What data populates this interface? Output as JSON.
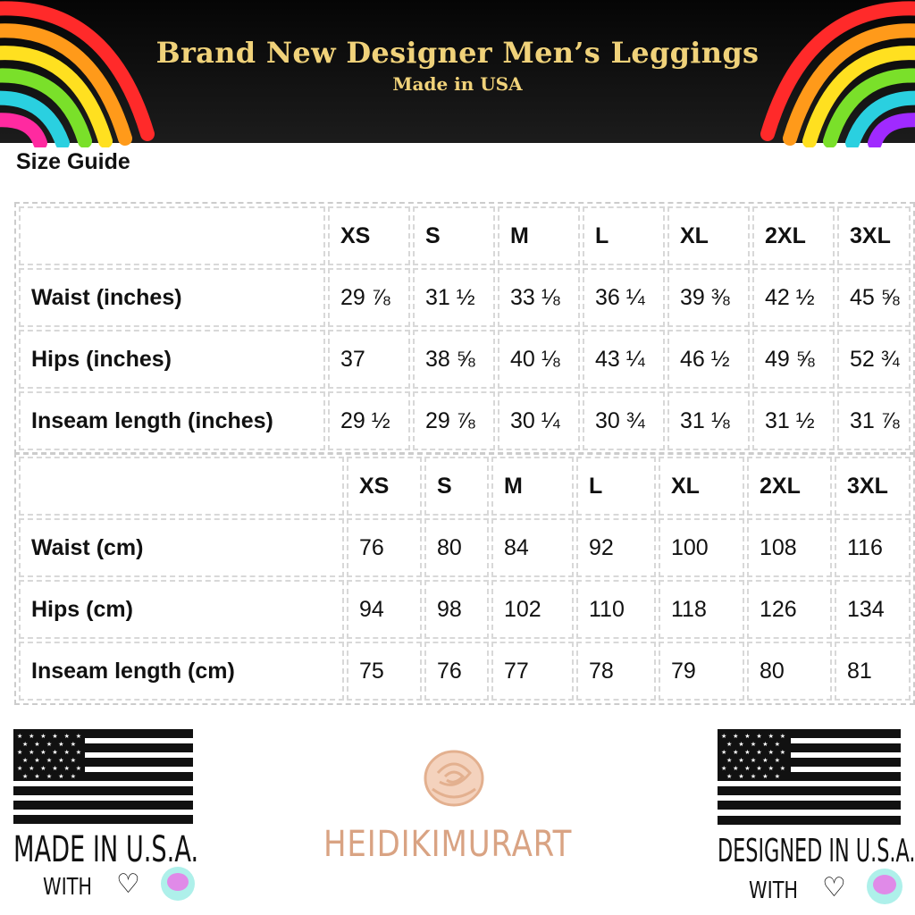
{
  "header": {
    "title": "Brand New Designer Men’s Leggings",
    "subtitle": "Made in USA"
  },
  "size_guide_label": "Size Guide",
  "sizes": [
    "XS",
    "S",
    "M",
    "L",
    "XL",
    "2XL",
    "3XL"
  ],
  "inches_table": {
    "rows": [
      {
        "label": "Waist (inches)",
        "values": [
          "29 ⅞",
          "31 ½",
          "33 ⅛",
          "36 ¼",
          "39 ⅜",
          "42 ½",
          "45 ⅝"
        ]
      },
      {
        "label": "Hips (inches)",
        "values": [
          "37",
          "38 ⅝",
          "40 ⅛",
          "43 ¼",
          "46 ½",
          "49 ⅝",
          "52 ¾"
        ]
      },
      {
        "label": "Inseam length (inches)",
        "values": [
          "29 ½",
          "29 ⅞",
          "30 ¼",
          "30 ¾",
          "31 ⅛",
          "31 ½",
          "31 ⅞"
        ]
      }
    ]
  },
  "cm_table": {
    "rows": [
      {
        "label": "Waist (cm)",
        "values": [
          "76",
          "80",
          "84",
          "92",
          "100",
          "108",
          "116"
        ]
      },
      {
        "label": "Hips (cm)",
        "values": [
          "94",
          "98",
          "102",
          "110",
          "118",
          "126",
          "134"
        ]
      },
      {
        "label": "Inseam length (cm)",
        "values": [
          "75",
          "76",
          "77",
          "78",
          "79",
          "80",
          "81"
        ]
      }
    ]
  },
  "footer": {
    "left_text": "MADE IN U.S.A.",
    "right_text": "DESIGNED IN U.S.A.",
    "with_text": "WITH",
    "heart_icon": "heart-icon",
    "brand": "HEIDIKIMURART"
  },
  "colors": {
    "title": "#f0d27a",
    "brand": "#d9a383",
    "header_bg": "#0a0a0a"
  }
}
